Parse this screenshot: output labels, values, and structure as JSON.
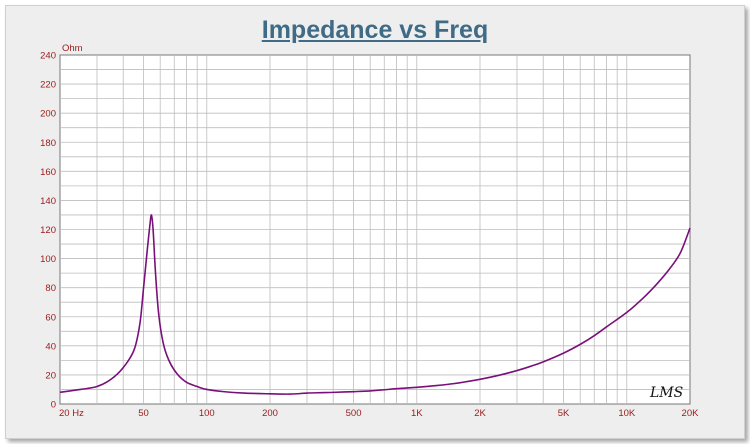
{
  "chart_data": {
    "type": "line",
    "title": "Impedance vs Freq",
    "ylabel": "Ohm",
    "xlabel": "",
    "x_scale": "log",
    "xlim": [
      20,
      20000
    ],
    "ylim": [
      0,
      240
    ],
    "grid": true,
    "y_ticks": [
      "240",
      "220",
      "200",
      "180",
      "160",
      "140",
      "120",
      "100",
      "80",
      "60",
      "40",
      "20",
      "0"
    ],
    "x_ticks": [
      {
        "value": 20,
        "label": "20  Hz"
      },
      {
        "value": 50,
        "label": "50"
      },
      {
        "value": 100,
        "label": "100"
      },
      {
        "value": 200,
        "label": "200"
      },
      {
        "value": 500,
        "label": "500"
      },
      {
        "value": 1000,
        "label": "1K"
      },
      {
        "value": 2000,
        "label": "2K"
      },
      {
        "value": 5000,
        "label": "5K"
      },
      {
        "value": 10000,
        "label": "10K"
      },
      {
        "value": 20000,
        "label": "20K"
      }
    ],
    "series": [
      {
        "color": "#7a0f7a",
        "points": [
          [
            20,
            8
          ],
          [
            25,
            10
          ],
          [
            30,
            12
          ],
          [
            35,
            17
          ],
          [
            40,
            25
          ],
          [
            45,
            37
          ],
          [
            48,
            55
          ],
          [
            50,
            80
          ],
          [
            52,
            105
          ],
          [
            53.5,
            122
          ],
          [
            54.5,
            130
          ],
          [
            55.5,
            120
          ],
          [
            57,
            90
          ],
          [
            59,
            62
          ],
          [
            62,
            42
          ],
          [
            66,
            30
          ],
          [
            72,
            21
          ],
          [
            80,
            15
          ],
          [
            90,
            12
          ],
          [
            100,
            10
          ],
          [
            120,
            8.5
          ],
          [
            150,
            7.5
          ],
          [
            200,
            7
          ],
          [
            250,
            6.8
          ],
          [
            300,
            7.5
          ],
          [
            350,
            7.8
          ],
          [
            400,
            8
          ],
          [
            500,
            8.5
          ],
          [
            600,
            9
          ],
          [
            700,
            9.8
          ],
          [
            800,
            10.5
          ],
          [
            1000,
            11.5
          ],
          [
            1200,
            12.5
          ],
          [
            1500,
            14
          ],
          [
            2000,
            17
          ],
          [
            2500,
            20
          ],
          [
            3000,
            23
          ],
          [
            3500,
            26
          ],
          [
            4000,
            29
          ],
          [
            5000,
            35
          ],
          [
            6000,
            41
          ],
          [
            7000,
            47
          ],
          [
            8000,
            53
          ],
          [
            10000,
            63
          ],
          [
            12000,
            73
          ],
          [
            14000,
            83
          ],
          [
            16000,
            93
          ],
          [
            18000,
            104
          ],
          [
            20000,
            121
          ]
        ]
      }
    ]
  },
  "watermark": "LMS"
}
